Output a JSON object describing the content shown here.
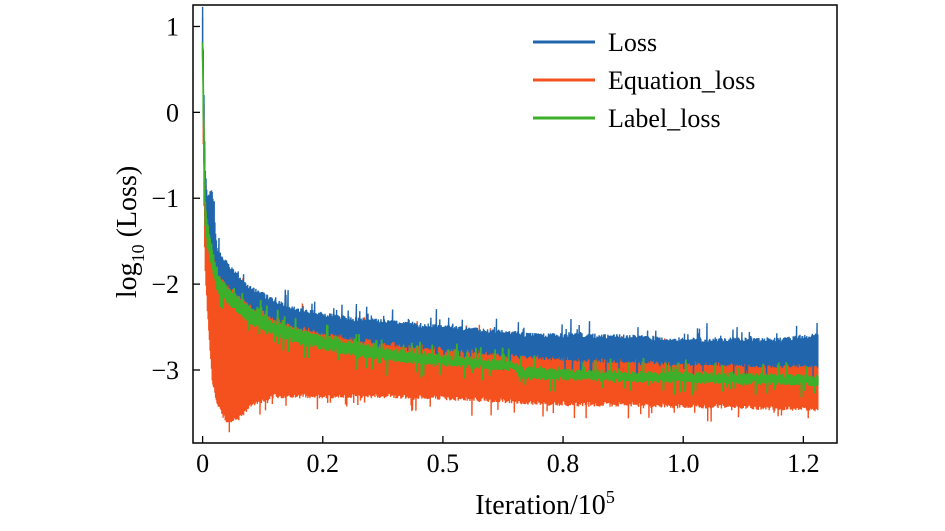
{
  "chart_data": {
    "type": "line",
    "title": "",
    "xlabel": "Iteration/10",
    "xlabel_exponent": "5",
    "ylabel": "log",
    "ylabel_subscript": "10",
    "ylabel_suffix": " (Loss)",
    "xlim": [
      -0.02,
      1.32
    ],
    "ylim": [
      -3.85,
      1.25
    ],
    "x_ticks": [
      {
        "value": 0.0,
        "label": "0"
      },
      {
        "value": 0.25,
        "label": "0.2"
      },
      {
        "value": 0.5,
        "label": "0.5"
      },
      {
        "value": 0.75,
        "label": "0.8"
      },
      {
        "value": 1.0,
        "label": "1.0"
      },
      {
        "value": 1.25,
        "label": "1.2"
      }
    ],
    "y_ticks": [
      {
        "value": 1,
        "label": "1"
      },
      {
        "value": 0,
        "label": "0"
      },
      {
        "value": -1,
        "label": "−1"
      },
      {
        "value": -2,
        "label": "−2"
      },
      {
        "value": -3,
        "label": "−3"
      }
    ],
    "legend_position": "top-right",
    "series": [
      {
        "name": "Loss",
        "color": "#2166ac",
        "x": [
          0.0,
          0.002,
          0.005,
          0.01,
          0.02,
          0.03,
          0.05,
          0.08,
          0.1,
          0.15,
          0.2,
          0.3,
          0.4,
          0.5,
          0.6,
          0.7,
          0.8,
          0.9,
          1.0,
          1.1,
          1.2,
          1.28
        ],
        "upper": [
          1.2,
          0.5,
          -0.6,
          -1.0,
          -0.9,
          -1.6,
          -1.75,
          -1.95,
          -2.05,
          -2.2,
          -2.3,
          -2.4,
          -2.45,
          -2.5,
          -2.55,
          -2.6,
          -2.6,
          -2.62,
          -2.65,
          -2.65,
          -2.65,
          -2.6
        ],
        "lower": [
          0.8,
          -0.3,
          -1.2,
          -1.4,
          -1.6,
          -1.85,
          -2.0,
          -2.15,
          -2.25,
          -2.4,
          -2.5,
          -2.62,
          -2.7,
          -2.75,
          -2.8,
          -2.85,
          -2.88,
          -2.9,
          -2.92,
          -2.93,
          -2.95,
          -2.95
        ]
      },
      {
        "name": "Equation_loss",
        "color": "#f4511e",
        "x": [
          0.0,
          0.002,
          0.005,
          0.01,
          0.02,
          0.03,
          0.05,
          0.08,
          0.1,
          0.15,
          0.2,
          0.3,
          0.4,
          0.5,
          0.6,
          0.7,
          0.8,
          0.9,
          1.0,
          1.1,
          1.2,
          1.28
        ],
        "upper": [
          1.1,
          0.4,
          -0.7,
          -1.1,
          -1.1,
          -1.7,
          -1.85,
          -2.05,
          -2.15,
          -2.3,
          -2.4,
          -2.5,
          -2.55,
          -2.6,
          -2.65,
          -2.7,
          -2.72,
          -2.75,
          -2.78,
          -2.8,
          -2.8,
          -2.78
        ],
        "lower": [
          0.6,
          -0.8,
          -1.8,
          -2.3,
          -3.1,
          -3.4,
          -3.6,
          -3.55,
          -3.4,
          -3.3,
          -3.3,
          -3.3,
          -3.3,
          -3.32,
          -3.35,
          -3.38,
          -3.4,
          -3.4,
          -3.42,
          -3.42,
          -3.45,
          -3.45
        ]
      },
      {
        "name": "Label_loss",
        "color": "#3cb02a",
        "x": [
          0.0,
          0.002,
          0.005,
          0.01,
          0.02,
          0.03,
          0.05,
          0.08,
          0.1,
          0.15,
          0.2,
          0.3,
          0.4,
          0.5,
          0.6,
          0.65,
          0.66,
          0.7,
          0.8,
          0.9,
          1.0,
          1.1,
          1.2,
          1.28
        ],
        "upper": [
          0.8,
          0.0,
          -1.0,
          -1.3,
          -1.6,
          -1.9,
          -2.05,
          -2.2,
          -2.3,
          -2.45,
          -2.55,
          -2.68,
          -2.78,
          -2.85,
          -2.9,
          -2.92,
          -2.98,
          -3.0,
          -3.02,
          -3.04,
          -3.05,
          -3.06,
          -3.07,
          -3.08
        ],
        "lower": [
          0.7,
          -0.3,
          -1.3,
          -1.55,
          -1.8,
          -2.05,
          -2.2,
          -2.35,
          -2.45,
          -2.58,
          -2.68,
          -2.8,
          -2.88,
          -2.93,
          -2.97,
          -2.99,
          -3.07,
          -3.09,
          -3.1,
          -3.12,
          -3.13,
          -3.14,
          -3.15,
          -3.16
        ]
      }
    ]
  }
}
